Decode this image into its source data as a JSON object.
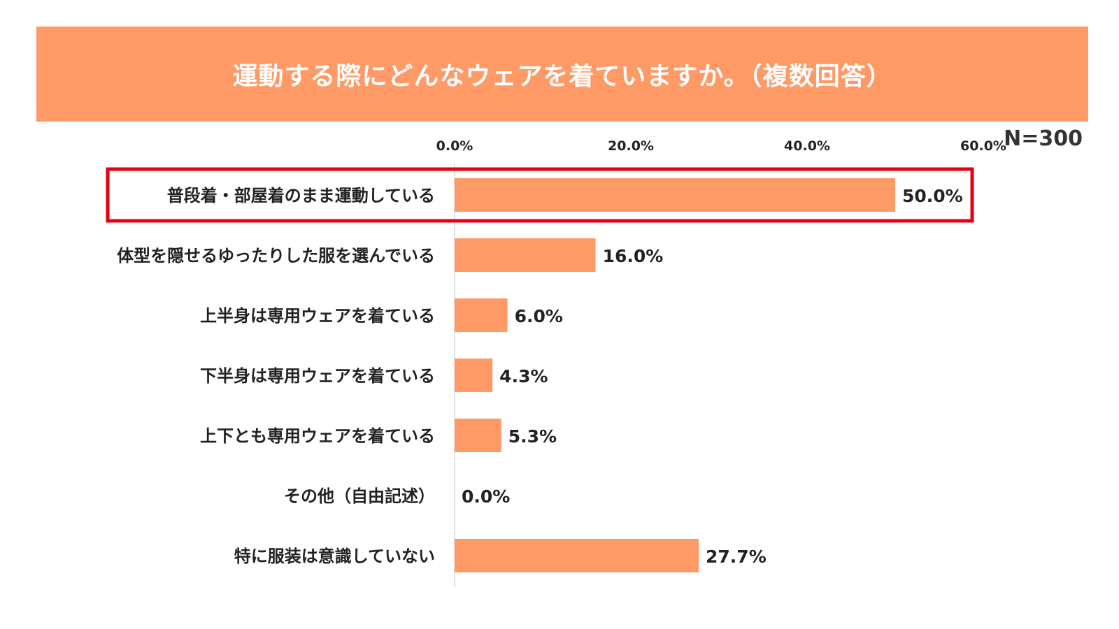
{
  "title": "運動する際にどんなウェアを着ていますか。（複数回答）",
  "sample_size": "N=300",
  "colors": {
    "banner": "#ff9966",
    "bar": "#ff9966",
    "highlight": "#e60012",
    "axis": "#d9d9d9",
    "text": "#222222"
  },
  "chart_data": {
    "type": "bar",
    "orientation": "horizontal",
    "title": "運動する際にどんなウェアを着ていますか。（複数回答）",
    "categories": [
      "普段着・部屋着のまま運動している",
      "体型を隠せるゆったりした服を選んでいる",
      "上半身は専用ウェアを着ている",
      "下半身は専用ウェアを着ている",
      "上下とも専用ウェアを着ている",
      "その他（自由記述）",
      "特に服装は意識していない"
    ],
    "values": [
      50.0,
      16.0,
      6.0,
      4.3,
      5.3,
      0.0,
      27.7
    ],
    "value_labels": [
      "50.0%",
      "16.0%",
      "6.0%",
      "4.3%",
      "5.3%",
      "0.0%",
      "27.7%"
    ],
    "xlim": [
      0,
      60
    ],
    "ticks": [
      0,
      20,
      40,
      60
    ],
    "tick_labels": [
      "0.0%",
      "20.0%",
      "40.0%",
      "60.0%"
    ],
    "axis_position": "top",
    "grid": false,
    "legend": "none",
    "highlighted_index": 0
  }
}
